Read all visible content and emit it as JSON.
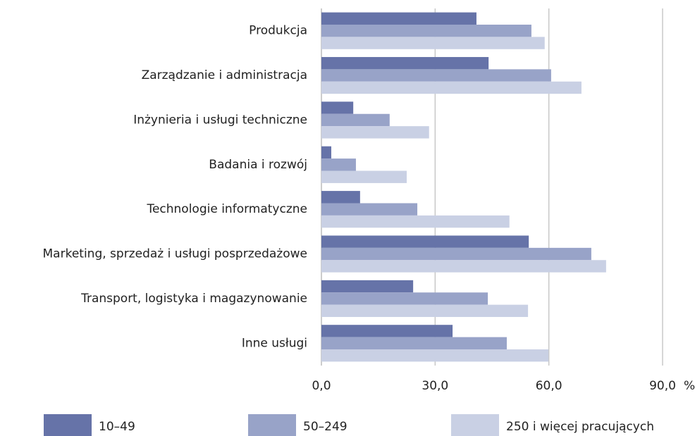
{
  "chart_data": {
    "type": "bar",
    "orientation": "horizontal",
    "categories": [
      "Produkcja",
      "Zarządzanie i administracja",
      "Inżynieria i usługi techniczne",
      "Badania i rozwój",
      "Technologie informatyczne",
      "Marketing, sprzedaż i usługi posprzedażowe",
      "Transport, logistyka i magazynowanie",
      "Inne usługi"
    ],
    "series": [
      {
        "name": "10–49",
        "color": "#6673a8",
        "values": [
          40.9,
          44.1,
          8.4,
          2.6,
          10.2,
          54.7,
          24.2,
          34.6
        ]
      },
      {
        "name": "50–249",
        "color": "#98a3c8",
        "values": [
          55.4,
          60.6,
          18.0,
          9.1,
          25.3,
          71.2,
          43.9,
          48.9
        ]
      },
      {
        "name": "250 i więcej pracujących",
        "color": "#c9d0e4",
        "values": [
          58.9,
          68.6,
          28.4,
          22.5,
          49.6,
          75.1,
          54.5,
          59.9
        ]
      }
    ],
    "xlim": [
      0,
      90
    ],
    "xticks": [
      {
        "value": 0,
        "label": "0,0"
      },
      {
        "value": 30,
        "label": "30,0"
      },
      {
        "value": 60,
        "label": "60,0"
      },
      {
        "value": 90,
        "label": "90,0"
      }
    ],
    "x_unit": "%",
    "grid": true,
    "legend": "bottom"
  }
}
